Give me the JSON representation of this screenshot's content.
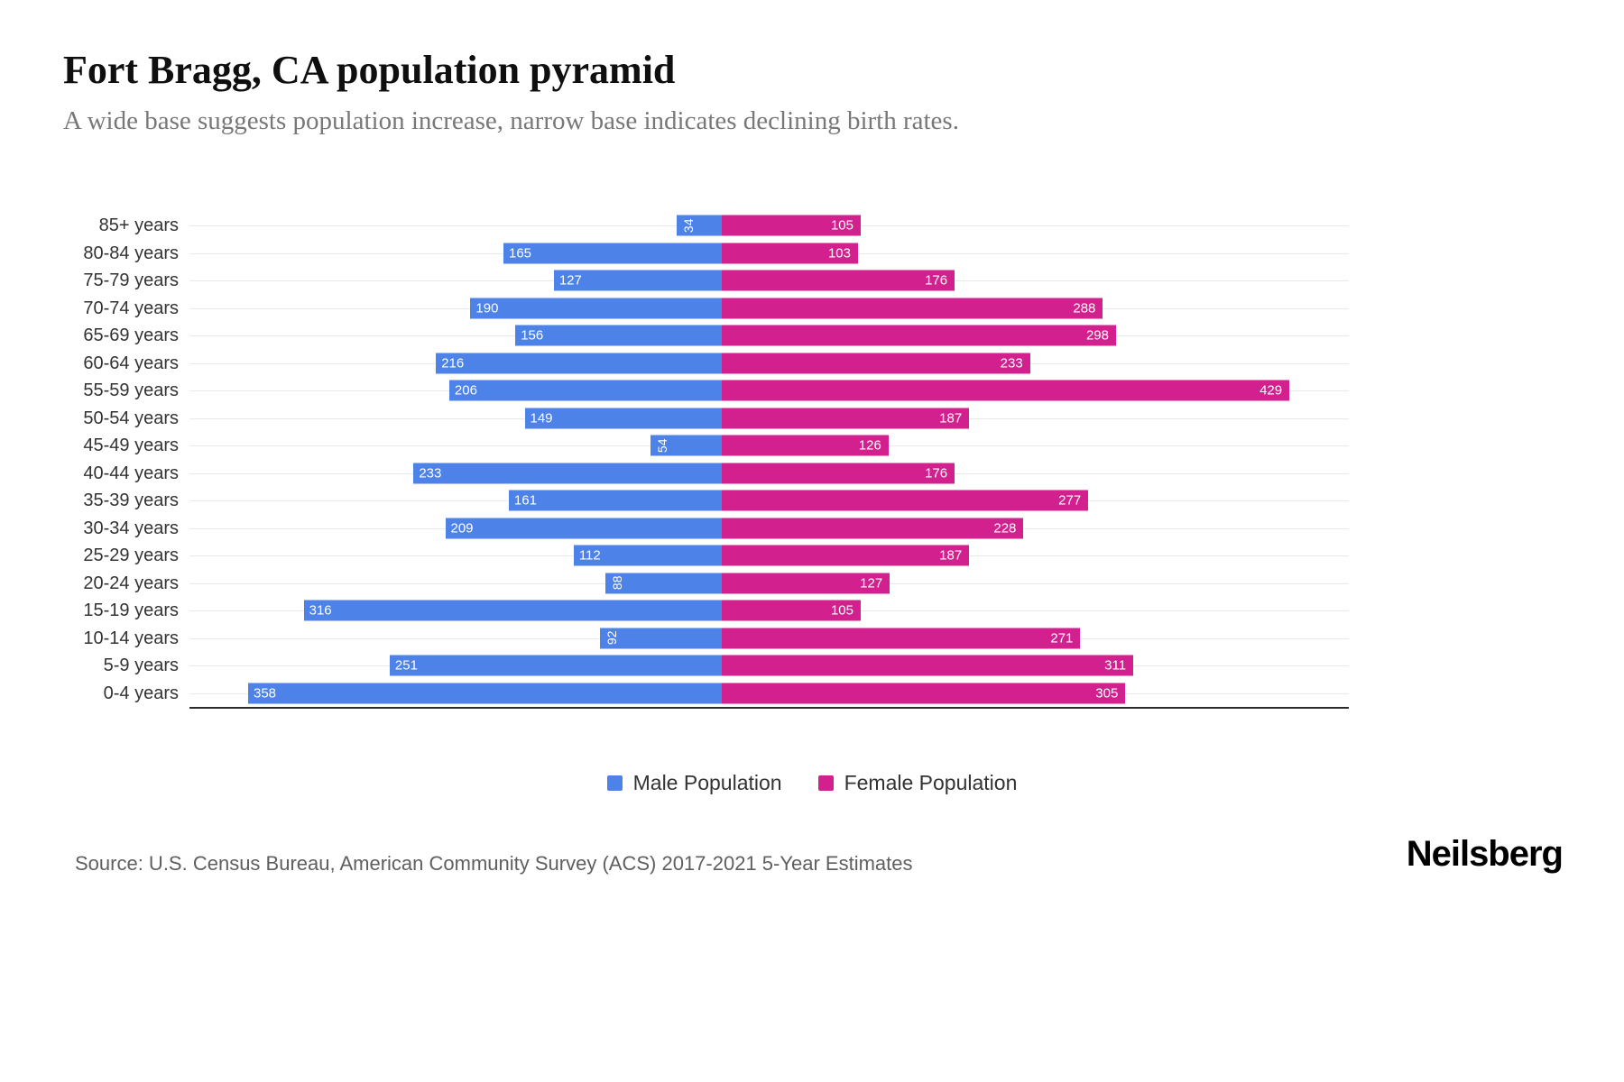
{
  "header": {
    "title": "Fort Bragg, CA population pyramid",
    "subtitle": "A wide base suggests population increase, narrow base indicates declining birth rates."
  },
  "chart_data": {
    "type": "bar",
    "variant": "population_pyramid",
    "title": "Fort Bragg, CA population pyramid",
    "categories": [
      "85+ years",
      "80-84 years",
      "75-79 years",
      "70-74 years",
      "65-69 years",
      "60-64 years",
      "55-59 years",
      "50-54 years",
      "45-49 years",
      "40-44 years",
      "35-39 years",
      "30-34 years",
      "25-29 years",
      "20-24 years",
      "15-19 years",
      "10-14 years",
      "5-9 years",
      "0-4 years"
    ],
    "series": [
      {
        "name": "Male Population",
        "color": "#4d82e8",
        "values": [
          34,
          165,
          127,
          190,
          156,
          216,
          206,
          149,
          54,
          233,
          161,
          209,
          112,
          88,
          316,
          92,
          251,
          358
        ]
      },
      {
        "name": "Female Population",
        "color": "#d2208e",
        "values": [
          105,
          103,
          176,
          288,
          298,
          233,
          429,
          187,
          126,
          176,
          277,
          228,
          187,
          127,
          105,
          271,
          311,
          305
        ]
      }
    ],
    "value_labels": "inside-bar-ends",
    "grid": true,
    "legend_position": "bottom",
    "x_ticks_visible": false
  },
  "footer": {
    "source": "Source: U.S. Census Bureau, American Community Survey (ACS) 2017-2021 5-Year Estimates",
    "brand": "Neilsberg"
  }
}
